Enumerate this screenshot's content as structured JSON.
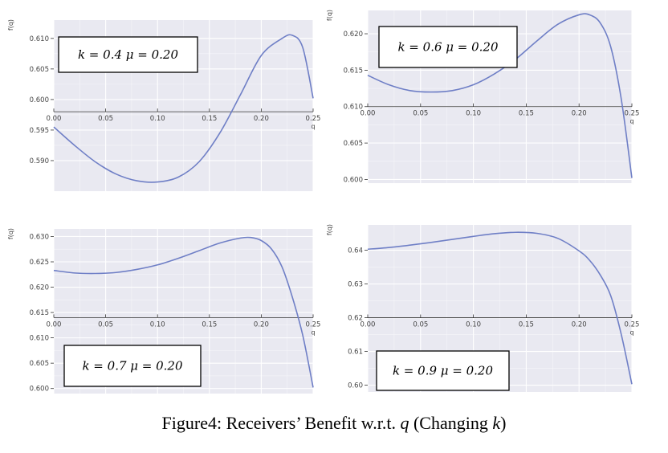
{
  "caption": {
    "prefix": "Figure4: Receivers’ Benefit w.r.t.",
    "var_q": "q",
    "middle": "(Changing",
    "var_k": "k",
    "suffix": ")"
  },
  "chart_data": [
    {
      "type": "line",
      "legend": "k = 0.4  μ = 0.20",
      "xlabel": "q",
      "ylabel": "f(q)",
      "xlim": [
        0.0,
        0.25
      ],
      "ylim": [
        0.585,
        0.613
      ],
      "x_axis_at_y": 0.598,
      "xticks": [
        "0.00",
        "0.05",
        "0.10",
        "0.15",
        "0.20",
        "0.25"
      ],
      "yticks": [
        "0.590",
        "0.595",
        "0.600",
        "0.605",
        "0.610"
      ],
      "grid": true,
      "legend_position": "upper-left",
      "series": [
        {
          "x": [
            0.0,
            0.02,
            0.04,
            0.06,
            0.08,
            0.1,
            0.12,
            0.14,
            0.16,
            0.18,
            0.2,
            0.22,
            0.23,
            0.24,
            0.25
          ],
          "y": [
            0.5955,
            0.5925,
            0.5898,
            0.5878,
            0.5867,
            0.5865,
            0.5873,
            0.5898,
            0.5945,
            0.6008,
            0.6072,
            0.61,
            0.6105,
            0.6085,
            0.6002
          ]
        }
      ]
    },
    {
      "type": "line",
      "legend": "k = 0.6  μ = 0.20",
      "xlabel": "q",
      "ylabel": "f(q)",
      "xlim": [
        0.0,
        0.25
      ],
      "ylim": [
        0.5995,
        0.6232
      ],
      "x_axis_at_y": 0.61,
      "xticks": [
        "0.00",
        "0.05",
        "0.10",
        "0.15",
        "0.20",
        "0.25"
      ],
      "yticks": [
        "0.600",
        "0.605",
        "0.610",
        "0.615",
        "0.620"
      ],
      "grid": true,
      "legend_position": "upper-left",
      "series": [
        {
          "x": [
            0.0,
            0.02,
            0.04,
            0.06,
            0.08,
            0.1,
            0.12,
            0.14,
            0.16,
            0.18,
            0.2,
            0.21,
            0.22,
            0.23,
            0.24,
            0.25
          ],
          "y": [
            0.6143,
            0.613,
            0.6122,
            0.612,
            0.6122,
            0.613,
            0.6145,
            0.6165,
            0.619,
            0.6213,
            0.6226,
            0.6226,
            0.6215,
            0.6182,
            0.611,
            0.6002
          ]
        }
      ]
    },
    {
      "type": "line",
      "legend": "k = 0.7  μ = 0.20",
      "xlabel": "q",
      "ylabel": "f(q)",
      "xlim": [
        0.0,
        0.25
      ],
      "ylim": [
        0.599,
        0.6315
      ],
      "x_axis_at_y": 0.614,
      "xticks": [
        "0.00",
        "0.05",
        "0.10",
        "0.15",
        "0.20",
        "0.25"
      ],
      "yticks": [
        "0.600",
        "0.605",
        "0.610",
        "0.615",
        "0.620",
        "0.625",
        "0.630"
      ],
      "grid": true,
      "legend_position": "lower-left",
      "series": [
        {
          "x": [
            0.0,
            0.02,
            0.04,
            0.06,
            0.08,
            0.1,
            0.12,
            0.14,
            0.16,
            0.18,
            0.19,
            0.2,
            0.21,
            0.22,
            0.23,
            0.24,
            0.25
          ],
          "y": [
            0.6233,
            0.6228,
            0.6227,
            0.6229,
            0.6235,
            0.6244,
            0.6257,
            0.6272,
            0.6287,
            0.6297,
            0.6298,
            0.6292,
            0.6275,
            0.624,
            0.618,
            0.6105,
            0.6002
          ]
        }
      ]
    },
    {
      "type": "line",
      "legend": "k = 0.9  μ = 0.20",
      "xlabel": "q",
      "ylabel": "f(q)",
      "xlim": [
        0.0,
        0.25
      ],
      "ylim": [
        0.598,
        0.6475
      ],
      "x_axis_at_y": 0.62,
      "xticks": [
        "0.00",
        "0.05",
        "0.10",
        "0.15",
        "0.20",
        "0.25"
      ],
      "yticks": [
        "0.60",
        "0.61",
        "0.62",
        "0.63",
        "0.64"
      ],
      "grid": true,
      "legend_position": "lower-left",
      "series": [
        {
          "x": [
            0.0,
            0.02,
            0.04,
            0.06,
            0.08,
            0.1,
            0.12,
            0.14,
            0.16,
            0.18,
            0.2,
            0.21,
            0.22,
            0.23,
            0.24,
            0.25
          ],
          "y": [
            0.6403,
            0.6408,
            0.6415,
            0.6423,
            0.6432,
            0.6441,
            0.6449,
            0.6453,
            0.645,
            0.6435,
            0.6398,
            0.637,
            0.6327,
            0.6265,
            0.615,
            0.6003
          ]
        }
      ]
    }
  ]
}
